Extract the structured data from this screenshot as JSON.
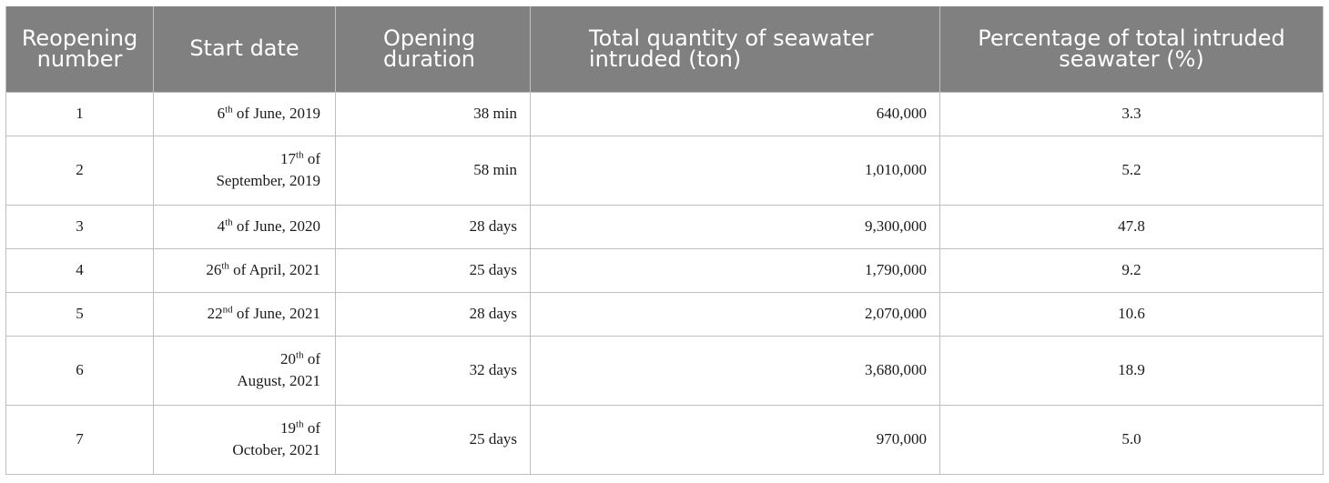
{
  "table": {
    "headers": [
      "Reopening number",
      "Start date",
      "Opening duration",
      "Total quantity of seawater intruded (ton)",
      "Percentage of total intruded seawater (%)"
    ],
    "rows": [
      {
        "number": "1",
        "date_day": "6",
        "date_sup": "th",
        "date_rest": " of June, 2019",
        "date_line2": "",
        "duration": "38 min",
        "quantity": "640,000",
        "percentage": "3.3"
      },
      {
        "number": "2",
        "date_day": "17",
        "date_sup": "th",
        "date_rest": " of",
        "date_line2": "September, 2019",
        "duration": "58 min",
        "quantity": "1,010,000",
        "percentage": "5.2"
      },
      {
        "number": "3",
        "date_day": "4",
        "date_sup": "th",
        "date_rest": " of June, 2020",
        "date_line2": "",
        "duration": "28 days",
        "quantity": "9,300,000",
        "percentage": "47.8"
      },
      {
        "number": "4",
        "date_day": "26",
        "date_sup": "th",
        "date_rest": " of April, 2021",
        "date_line2": "",
        "duration": "25 days",
        "quantity": "1,790,000",
        "percentage": "9.2"
      },
      {
        "number": "5",
        "date_day": "22",
        "date_sup": "nd",
        "date_rest": " of June, 2021",
        "date_line2": "",
        "duration": "28 days",
        "quantity": "2,070,000",
        "percentage": "10.6"
      },
      {
        "number": "6",
        "date_day": "20",
        "date_sup": "th",
        "date_rest": " of",
        "date_line2": "August, 2021",
        "duration": "32 days",
        "quantity": "3,680,000",
        "percentage": "18.9"
      },
      {
        "number": "7",
        "date_day": "19",
        "date_sup": "th",
        "date_rest": " of",
        "date_line2": "October, 2021",
        "duration": "25 days",
        "quantity": "970,000",
        "percentage": "5.0"
      }
    ]
  },
  "colors": {
    "header_bg": "#808080",
    "header_text": "#ffffff",
    "border": "#bfbfbf"
  }
}
